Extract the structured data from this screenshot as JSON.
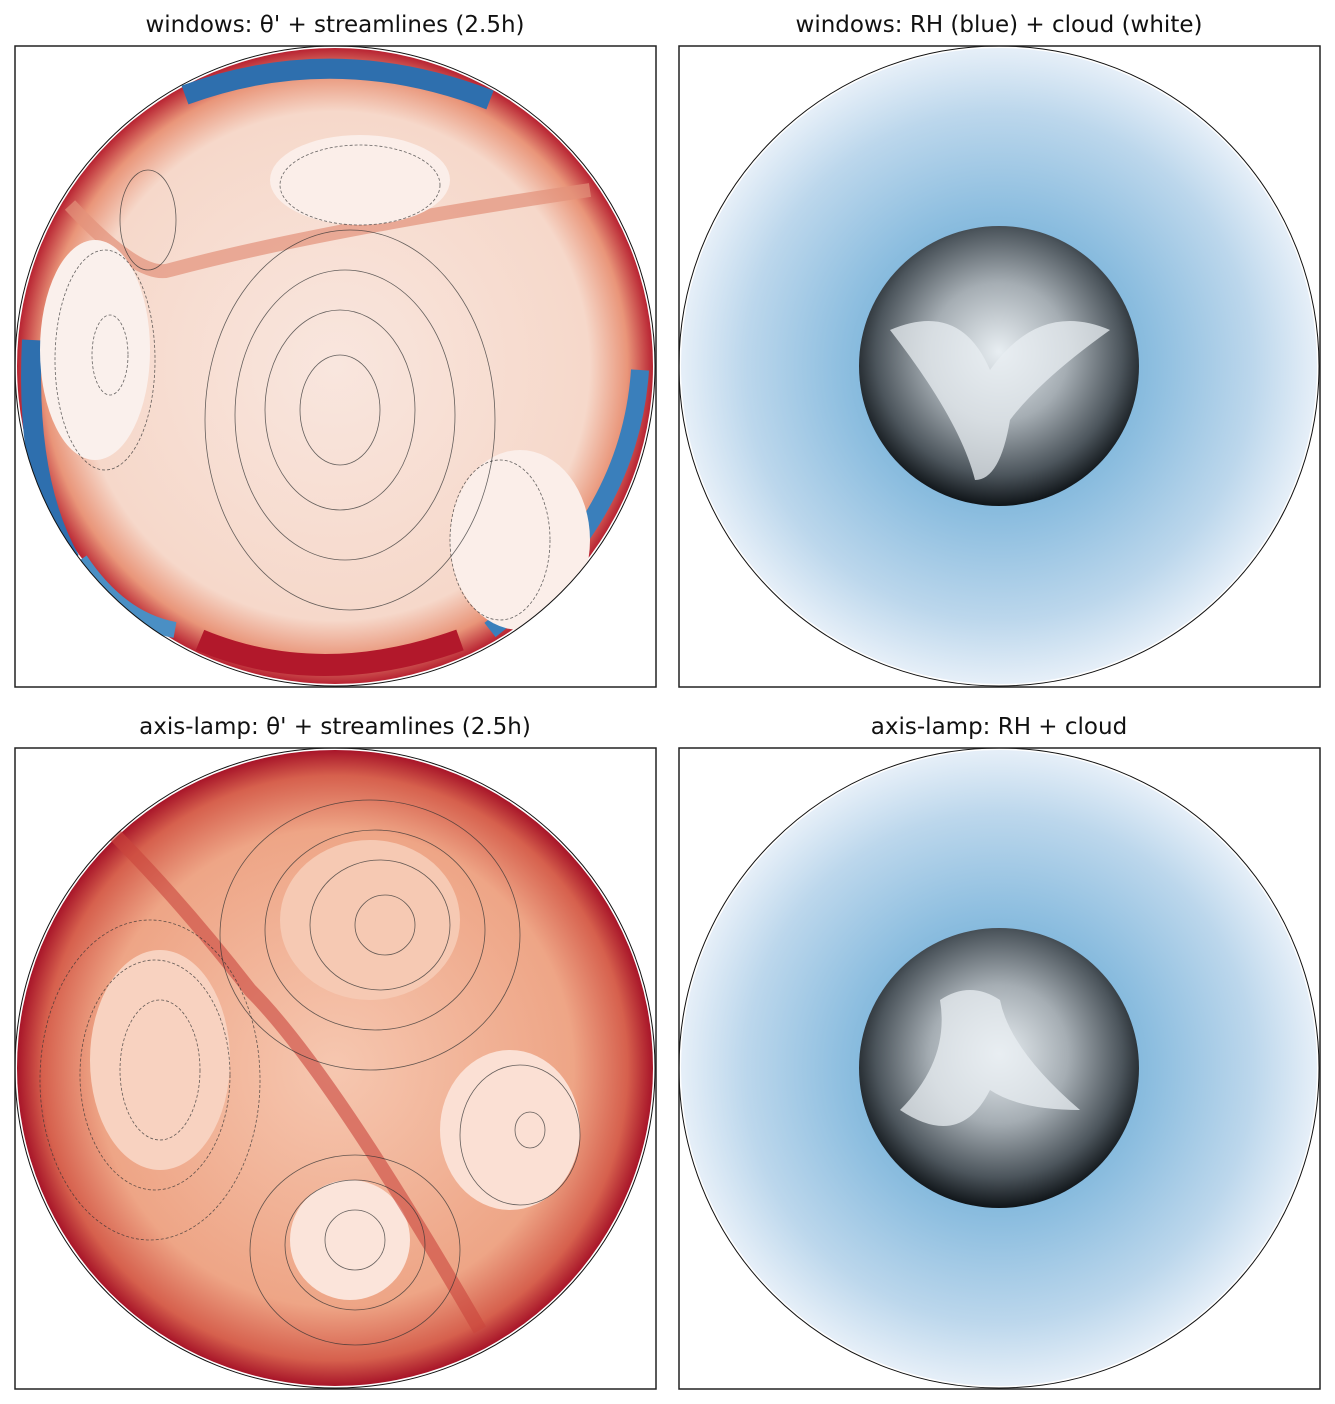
{
  "chart_data": [
    {
      "type": "heatmap",
      "title": "windows: θ' + streamlines (2.5h)"
    },
    {
      "type": "heatmap",
      "title": "windows: RH (blue) + cloud (white)"
    },
    {
      "type": "heatmap",
      "title": "axis-lamp: θ' + streamlines (2.5h)"
    },
    {
      "type": "heatmap",
      "title": "axis-lamp: RH + cloud"
    }
  ]
}
